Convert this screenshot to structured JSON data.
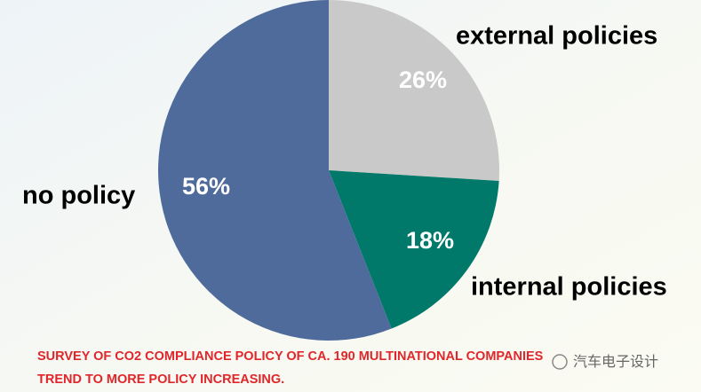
{
  "chart_data": {
    "type": "pie",
    "categories": [
      "external policies",
      "internal policies",
      "no policy"
    ],
    "values": [
      26,
      18,
      56
    ],
    "value_labels": [
      "26%",
      "18%",
      "56%"
    ],
    "colors": [
      "#c9c9c9",
      "#00796b",
      "#4f6b9c"
    ],
    "footnote": [
      "SURVEY OF CO2 COMPLIANCE POLICY OF CA. 190 MULTINATIONAL COMPANIES",
      "TREND TO MORE POLICY INCREASING."
    ],
    "watermark": "汽车电子设计"
  }
}
